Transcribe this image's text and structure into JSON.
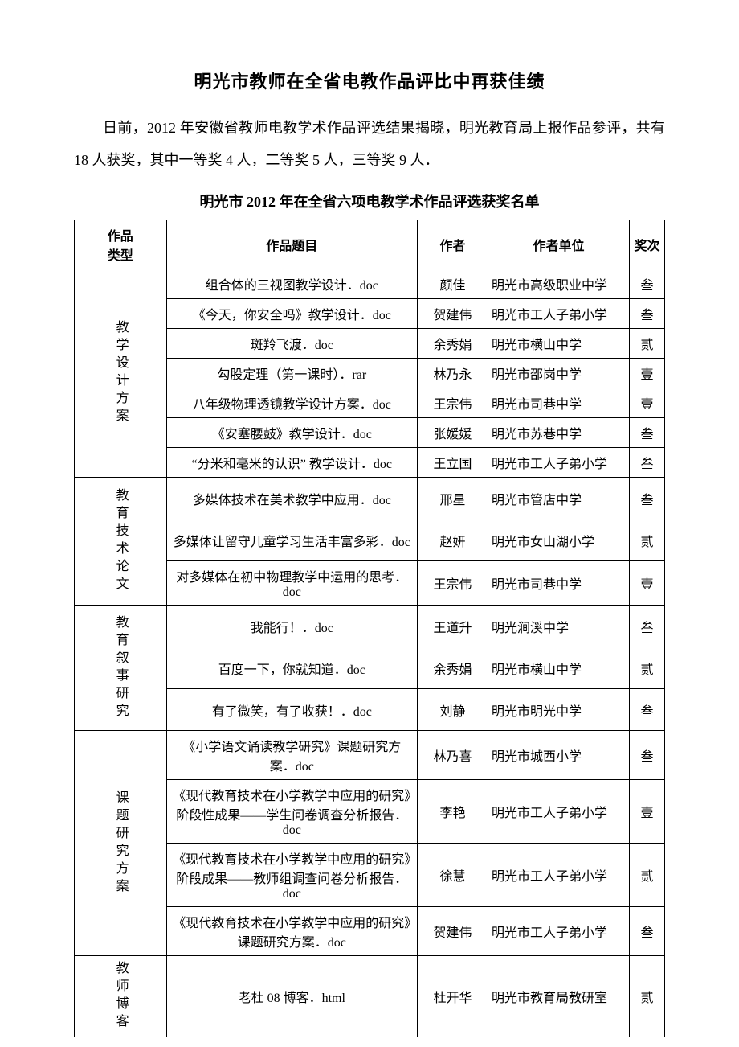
{
  "title": "明光市教师在全省电教作品评比中再获佳绩",
  "intro": "日前，2012 年安徽省教师电教学术作品评选结果揭晓，明光教育局上报作品参评，共有 18 人获奖，其中一等奖 4 人，二等奖 5 人，三等奖 9 人．",
  "table_caption": "明光市 2012 年在全省六项电教学术作品评选获奖名单",
  "headers": {
    "type": "作品\n类型",
    "title": "作品题目",
    "author": "作者",
    "unit": "作者单位",
    "prize": "奖次"
  },
  "groups": [
    {
      "category": "教学设计方案",
      "rows": [
        {
          "title": "组合体的三视图教学设计．doc",
          "author": "颜佳",
          "unit": "明光市高级职业中学",
          "prize": "叁"
        },
        {
          "title": "《今天，你安全吗》教学设计．doc",
          "author": "贺建伟",
          "unit": "明光市工人子弟小学",
          "prize": "叁"
        },
        {
          "title": "斑羚飞渡．doc",
          "author": "余秀娟",
          "unit": "明光市横山中学",
          "prize": "贰"
        },
        {
          "title": "勾股定理（第一课时）．rar",
          "author": "林乃永",
          "unit": "明光市邵岗中学",
          "prize": "壹"
        },
        {
          "title": "八年级物理透镜教学设计方案．doc",
          "author": "王宗伟",
          "unit": "明光市司巷中学",
          "prize": "壹"
        },
        {
          "title": "《安塞腰鼓》教学设计．doc",
          "author": "张媛媛",
          "unit": "明光市苏巷中学",
          "prize": "叁"
        },
        {
          "title": "“分米和毫米的认识” 教学设计．doc",
          "author": "王立国",
          "unit": "明光市工人子弟小学",
          "prize": "叁"
        }
      ]
    },
    {
      "category": "教育技术论文",
      "rows": [
        {
          "title": "多媒体技术在美术教学中应用．doc",
          "author": "邢星",
          "unit": "明光市管店中学",
          "prize": "叁",
          "tall": true
        },
        {
          "title": "多媒体让留守儿童学习生活丰富多彩．doc",
          "author": "赵妍",
          "unit": "明光市女山湖小学",
          "prize": "贰",
          "tall": true
        },
        {
          "title": "对多媒体在初中物理教学中运用的思考．doc",
          "author": "王宗伟",
          "unit": "明光市司巷中学",
          "prize": "壹",
          "tall": true
        }
      ]
    },
    {
      "category": "教育叙事研究",
      "rows": [
        {
          "title": "我能行！．doc",
          "author": "王道升",
          "unit": "明光涧溪中学",
          "prize": "叁",
          "tall": true
        },
        {
          "title": "百度一下，你就知道．doc",
          "author": "余秀娟",
          "unit": "明光市横山中学",
          "prize": "贰",
          "tall": true
        },
        {
          "title": "有了微笑，有了收获！．doc",
          "author": "刘静",
          "unit": "明光市明光中学",
          "prize": "叁",
          "tall": true
        }
      ]
    },
    {
      "category": "课题研究方案",
      "rows": [
        {
          "title": "《小学语文诵读教学研究》课题研究方案．doc",
          "author": "林乃喜",
          "unit": "明光市城西小学",
          "prize": "叁",
          "tall": true
        },
        {
          "title": "《现代教育技术在小学教学中应用的研究》阶段性成果——学生问卷调查分析报告．doc",
          "author": "李艳",
          "unit": "明光市工人子弟小学",
          "prize": "壹",
          "tall": true
        },
        {
          "title": "《现代教育技术在小学教学中应用的研究》阶段成果——教师组调查问卷分析报告．doc",
          "author": "徐慧",
          "unit": "明光市工人子弟小学",
          "prize": "贰",
          "tall": true
        },
        {
          "title": "《现代教育技术在小学教学中应用的研究》课题研究方案．doc",
          "author": "贺建伟",
          "unit": "明光市工人子弟小学",
          "prize": "叁",
          "tall": true
        }
      ]
    },
    {
      "category": "教师博客",
      "rows": [
        {
          "title": "老杜 08 博客．html",
          "author": "杜开华",
          "unit": "明光市教育局教研室",
          "prize": "贰"
        }
      ]
    }
  ]
}
